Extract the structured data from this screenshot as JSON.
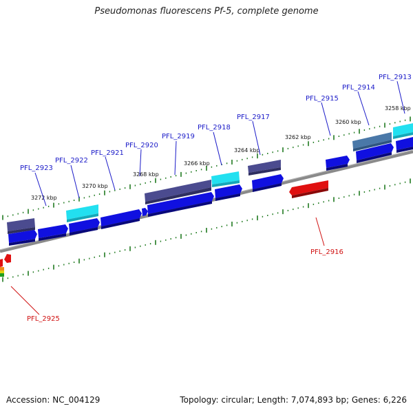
{
  "title": "Pseudomonas fluorescens Pf-5, complete genome",
  "footer": {
    "accession": "Accession: NC_004129",
    "summary": "Topology: circular; Length: 7,074,893 bp; Genes: 6,226"
  },
  "colors": {
    "backbone": "#8a8a8a",
    "tick": "#1f7a1f",
    "cds_forward": "#1010e0",
    "cds_reverse": "#e01010",
    "rna_cyan": "#22e0f0",
    "slate": "#4b4b8f",
    "steel": "#4a78a8",
    "label_forward": "#1a1ac8",
    "label_reverse": "#d01010"
  },
  "tick_labels": [
    "3258 kbp",
    "3260 kbp",
    "3262 kbp",
    "3264 kbp",
    "3266 kbp",
    "3268 kbp",
    "3270 kbp",
    "3272 kbp"
  ],
  "gene_labels_forward": [
    "PFL_2913",
    "PFL_2914",
    "PFL_2915",
    "PFL_2917",
    "PFL_2918",
    "PFL_2919",
    "PFL_2920",
    "PFL_2921",
    "PFL_2922",
    "PFL_2923"
  ],
  "gene_labels_reverse": [
    "PFL_2916",
    "PFL_2925"
  ]
}
